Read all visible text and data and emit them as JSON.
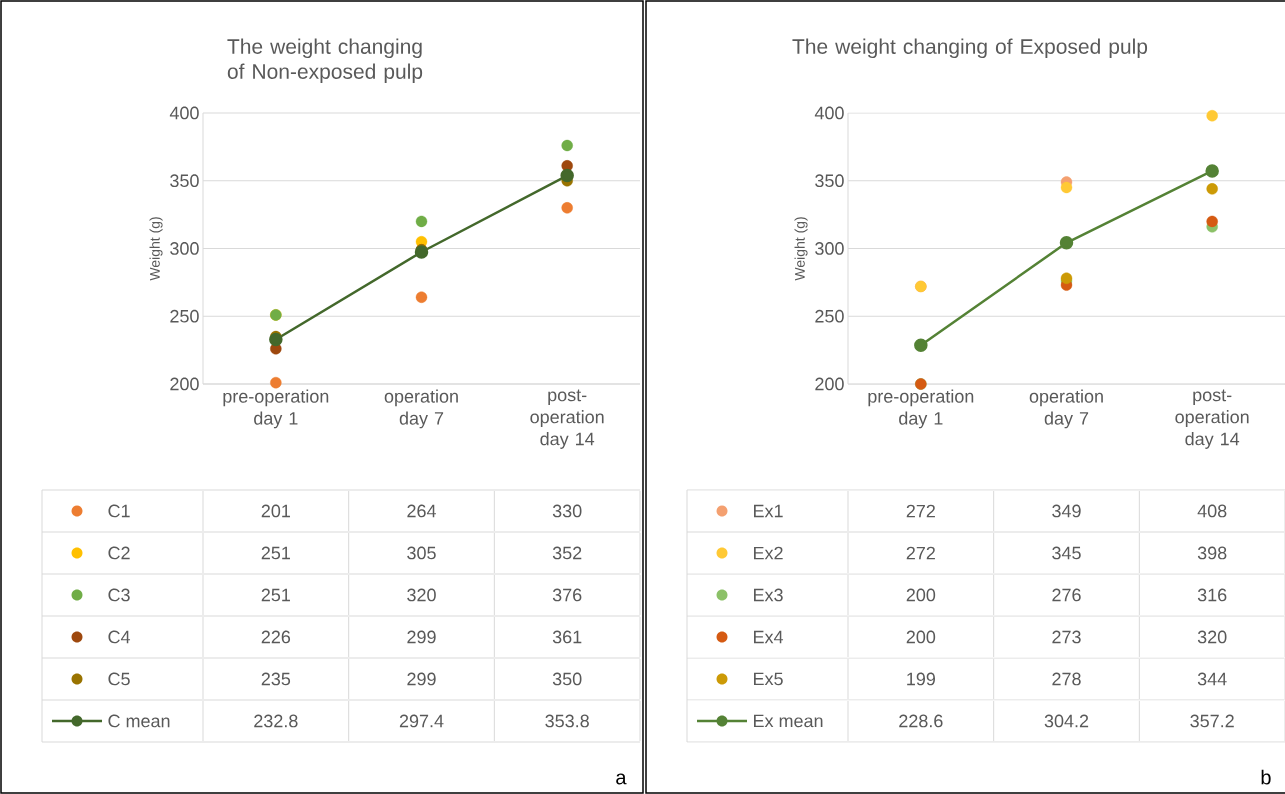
{
  "chart_data": [
    {
      "type": "scatter",
      "title": "The weight changing of Non-exposed pulp",
      "ylabel": "Weight (g)",
      "categories": [
        "pre-operation day 1",
        "operation day 7",
        "post-operation day 14"
      ],
      "ylim": [
        200,
        400
      ],
      "yticks": [
        200,
        250,
        300,
        350,
        400
      ],
      "grid": "y",
      "marker": "circle",
      "legend": "bottom",
      "annotations": [
        "a"
      ],
      "series": [
        {
          "name": "C1",
          "color": "#ed7d31",
          "values": [
            201,
            264,
            330
          ],
          "value_labels": [
            "201",
            "264",
            "330"
          ]
        },
        {
          "name": "C2",
          "color": "#ffc000",
          "values": [
            251,
            305,
            null
          ],
          "value_labels": [
            "251",
            "305",
            "352"
          ]
        },
        {
          "name": "C3",
          "color": "#70ad47",
          "values": [
            251,
            320,
            376
          ],
          "value_labels": [
            "251",
            "320",
            "376"
          ]
        },
        {
          "name": "C4",
          "color": "#9e480e",
          "values": [
            226,
            299,
            361
          ],
          "value_labels": [
            "226",
            "299",
            "361"
          ]
        },
        {
          "name": "C5",
          "color": "#997300",
          "values": [
            235,
            299,
            350
          ],
          "value_labels": [
            "235",
            "299",
            "350"
          ]
        },
        {
          "name": "C mean",
          "type": "line",
          "color": "#43682b",
          "values": [
            232.8,
            297.4,
            353.8
          ],
          "value_labels": [
            "232.8",
            "297.4",
            "353.8"
          ]
        }
      ]
    },
    {
      "type": "scatter",
      "title": "The weight changing of Exposed pulp",
      "ylabel": "Weight (g)",
      "categories": [
        "pre-operation day 1",
        "operation day 7",
        "post-operation day 14"
      ],
      "ylim": [
        200,
        400
      ],
      "yticks": [
        200,
        250,
        300,
        350,
        400
      ],
      "grid": "y",
      "marker": "circle",
      "legend": "bottom",
      "annotations": [
        "b"
      ],
      "series": [
        {
          "name": "Ex1",
          "color": "#f4a070",
          "values": [
            272,
            349,
            null
          ],
          "value_labels": [
            "272",
            "349",
            "408"
          ]
        },
        {
          "name": "Ex2",
          "color": "#ffc935",
          "values": [
            272,
            345,
            398
          ],
          "value_labels": [
            "272",
            "345",
            "398"
          ]
        },
        {
          "name": "Ex3",
          "color": "#8cc168",
          "values": [
            200,
            276,
            316
          ],
          "value_labels": [
            "200",
            "276",
            "316"
          ]
        },
        {
          "name": "Ex4",
          "color": "#d55a12",
          "values": [
            200,
            273,
            320
          ],
          "value_labels": [
            "200",
            "273",
            "320"
          ]
        },
        {
          "name": "Ex5",
          "color": "#cc9a06",
          "values": [
            null,
            278,
            344
          ],
          "value_labels": [
            "199",
            "278",
            "344"
          ]
        },
        {
          "name": "Ex mean",
          "type": "line",
          "color": "#548235",
          "values": [
            228.6,
            304.2,
            357.2
          ],
          "value_labels": [
            "228.6",
            "304.2",
            "357.2"
          ]
        }
      ]
    }
  ]
}
